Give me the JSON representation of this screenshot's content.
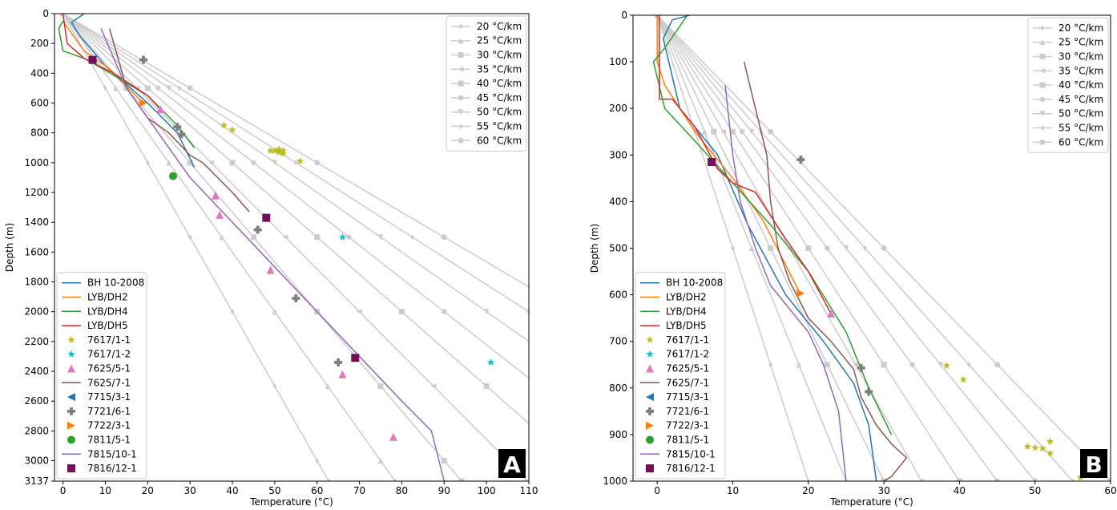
{
  "chart_data": [
    {
      "type": "line",
      "panel_label": "A",
      "xlabel": "Temperature (°C)",
      "ylabel": "Depth (m)",
      "xlim": [
        -2,
        110
      ],
      "ylim": [
        3137,
        0
      ],
      "xticks": [
        0,
        10,
        20,
        30,
        40,
        50,
        60,
        70,
        80,
        90,
        100,
        110
      ],
      "yticks": [
        0,
        200,
        400,
        600,
        800,
        1000,
        1200,
        1400,
        1600,
        1800,
        2000,
        2200,
        2400,
        2600,
        2800,
        3000,
        3137
      ],
      "legend": "lower left",
      "gradient_legend": "upper right",
      "gradient_color": "#cccccc",
      "gradients": [
        {
          "name": "20 °C/km",
          "marker": "diamond",
          "x": [
            0,
            10,
            20,
            30,
            40,
            50,
            60,
            62.74
          ],
          "y": [
            0,
            500,
            1000,
            1500,
            2000,
            2500,
            3000,
            3137
          ]
        },
        {
          "name": "25 °C/km",
          "marker": "triangle-up",
          "x": [
            0,
            12.5,
            25,
            37.5,
            50,
            62.5,
            75,
            78.425
          ],
          "y": [
            0,
            500,
            1000,
            1500,
            2000,
            2500,
            3000,
            3137
          ]
        },
        {
          "name": "30 °C/km",
          "marker": "square",
          "x": [
            0,
            15,
            30,
            45,
            60,
            75,
            90,
            94.11
          ],
          "y": [
            0,
            500,
            1000,
            1500,
            2000,
            2500,
            3000,
            3137
          ]
        },
        {
          "name": "35 °C/km",
          "marker": "triangle-left",
          "x": [
            0,
            17.5,
            35,
            52.5,
            70,
            87.5,
            105,
            109.795
          ],
          "y": [
            0,
            500,
            1000,
            1500,
            2000,
            2500,
            3000,
            3137
          ]
        },
        {
          "name": "40 °C/km",
          "marker": "square",
          "x": [
            0,
            20,
            40,
            60,
            80,
            100,
            120,
            125.48
          ],
          "y": [
            0,
            500,
            1000,
            1500,
            2000,
            2500,
            3000,
            3137
          ]
        },
        {
          "name": "45 °C/km",
          "marker": "hexagon",
          "x": [
            0,
            22.5,
            45,
            67.5,
            90,
            112.5,
            135,
            141.165
          ],
          "y": [
            0,
            500,
            1000,
            1500,
            2000,
            2500,
            3000,
            3137
          ]
        },
        {
          "name": "50 °C/km",
          "marker": "triangle-down",
          "x": [
            0,
            25,
            50,
            75,
            100,
            125,
            150,
            156.85
          ],
          "y": [
            0,
            500,
            1000,
            1500,
            2000,
            2500,
            3000,
            3137
          ]
        },
        {
          "name": "55 °C/km",
          "marker": "diamond",
          "x": [
            0,
            27.5,
            55,
            82.5,
            110,
            137.5,
            165,
            172.535
          ],
          "y": [
            0,
            500,
            1000,
            1500,
            2000,
            2500,
            3000,
            3137
          ]
        },
        {
          "name": "60 °C/km",
          "marker": "circle",
          "x": [
            0,
            30,
            60,
            90,
            120,
            150,
            180,
            188.22
          ],
          "y": [
            0,
            500,
            1000,
            1500,
            2000,
            2500,
            3000,
            3137
          ]
        }
      ],
      "series": [
        {
          "name": "BH 10-2008",
          "color": "#1f77b4",
          "x": [
            5,
            2,
            4,
            10,
            20,
            27,
            31
          ],
          "y": [
            0,
            60,
            150,
            350,
            600,
            800,
            1030
          ]
        },
        {
          "name": "LYB/DH2",
          "color": "#ff7f0e",
          "x": [
            0,
            5,
            10,
            19
          ],
          "y": [
            50,
            250,
            350,
            600
          ]
        },
        {
          "name": "LYB/DH4",
          "color": "#2ca02c",
          "x": [
            0,
            -1,
            0,
            5,
            10,
            20,
            27,
            31
          ],
          "y": [
            50,
            100,
            250,
            300,
            380,
            550,
            750,
            900
          ]
        },
        {
          "name": "LYB/DH5",
          "color": "#d62728",
          "x": [
            0,
            1,
            5,
            12,
            20,
            23
          ],
          "y": [
            0,
            200,
            300,
            400,
            550,
            640
          ]
        },
        {
          "name": "7617/1-1",
          "color": "#bcbd22",
          "marker": "star",
          "x": [
            38,
            40,
            49,
            50,
            51,
            52,
            51,
            52,
            56
          ],
          "y": [
            750,
            780,
            920,
            920,
            930,
            920,
            910,
            940,
            990
          ]
        },
        {
          "name": "7617/1-2",
          "color": "#17becf",
          "marker": "star",
          "x": [
            66,
            101
          ],
          "y": [
            1500,
            2340
          ]
        },
        {
          "name": "7625/5-1",
          "color": "#e377c2",
          "marker": "triangle-up",
          "x": [
            23,
            36,
            37,
            49,
            66,
            78
          ],
          "y": [
            640,
            1220,
            1350,
            1720,
            2420,
            2840
          ]
        },
        {
          "name": "7625/7-1",
          "color": "#8c564b",
          "x": [
            11,
            13,
            15,
            20,
            25,
            30,
            33,
            40,
            44
          ],
          "y": [
            100,
            300,
            500,
            700,
            800,
            950,
            1000,
            1200,
            1330
          ]
        },
        {
          "name": "7715/3-1",
          "color": "#1f77b4",
          "marker": "triangle-left",
          "x": [],
          "y": []
        },
        {
          "name": "7721/6-1",
          "color": "#7f7f7f",
          "marker": "plus",
          "x": [
            19,
            27,
            28,
            46,
            55,
            65
          ],
          "y": [
            310,
            760,
            810,
            1450,
            1910,
            2340
          ]
        },
        {
          "name": "7722/3-1",
          "color": "#ff7f0e",
          "marker": "triangle-right",
          "x": [
            19
          ],
          "y": [
            600
          ]
        },
        {
          "name": "7811/5-1",
          "color": "#2ca02c",
          "marker": "circle",
          "x": [
            26
          ],
          "y": [
            1090
          ]
        },
        {
          "name": "7815/10-1",
          "color": "#9467bd",
          "x": [
            9,
            12,
            15,
            20,
            25,
            30,
            40,
            50,
            60,
            70,
            80,
            87,
            90
          ],
          "y": [
            100,
            300,
            500,
            700,
            900,
            1100,
            1400,
            1700,
            2000,
            2300,
            2600,
            2800,
            3137
          ]
        },
        {
          "name": "7816/12-1",
          "color": "#720e5a",
          "marker": "square",
          "x": [
            7,
            48,
            69
          ],
          "y": [
            310,
            1370,
            2310
          ]
        }
      ]
    },
    {
      "type": "line",
      "panel_label": "B",
      "xlabel": "Temperature (°C)",
      "ylabel": "Depth (m)",
      "xlim": [
        -3.2,
        60
      ],
      "ylim": [
        1000,
        0
      ],
      "xticks": [
        0,
        10,
        20,
        30,
        40,
        50,
        60
      ],
      "yticks": [
        0,
        100,
        200,
        300,
        400,
        500,
        600,
        700,
        800,
        900,
        1000
      ],
      "legend": "lower left",
      "gradient_legend": "upper right",
      "gradient_color": "#cccccc",
      "gradients": [
        {
          "name": "20 °C/km",
          "marker": "diamond",
          "x": [
            0,
            5,
            10,
            15,
            20
          ],
          "y": [
            0,
            250,
            500,
            750,
            1000
          ]
        },
        {
          "name": "25 °C/km",
          "marker": "triangle-up",
          "x": [
            0,
            6.25,
            12.5,
            18.75,
            25
          ],
          "y": [
            0,
            250,
            500,
            750,
            1000
          ]
        },
        {
          "name": "30 °C/km",
          "marker": "square",
          "x": [
            0,
            7.5,
            15,
            22.5,
            30
          ],
          "y": [
            0,
            250,
            500,
            750,
            1000
          ]
        },
        {
          "name": "35 °C/km",
          "marker": "triangle-left",
          "x": [
            0,
            8.75,
            17.5,
            26.25,
            35
          ],
          "y": [
            0,
            250,
            500,
            750,
            1000
          ]
        },
        {
          "name": "40 °C/km",
          "marker": "square",
          "x": [
            0,
            10,
            20,
            30,
            40
          ],
          "y": [
            0,
            250,
            500,
            750,
            1000
          ]
        },
        {
          "name": "45 °C/km",
          "marker": "hexagon",
          "x": [
            0,
            11.25,
            22.5,
            33.75,
            45
          ],
          "y": [
            0,
            250,
            500,
            750,
            1000
          ]
        },
        {
          "name": "50 °C/km",
          "marker": "triangle-down",
          "x": [
            0,
            12.5,
            25,
            37.5,
            50
          ],
          "y": [
            0,
            250,
            500,
            750,
            1000
          ]
        },
        {
          "name": "55 °C/km",
          "marker": "diamond",
          "x": [
            0,
            13.75,
            27.5,
            41.25,
            55
          ],
          "y": [
            0,
            250,
            500,
            750,
            1000
          ]
        },
        {
          "name": "60 °C/km",
          "marker": "circle",
          "x": [
            0,
            15,
            30,
            45,
            60
          ],
          "y": [
            0,
            250,
            500,
            750,
            1000
          ]
        }
      ],
      "series": [
        {
          "name": "BH 10-2008",
          "color": "#1f77b4",
          "x": [
            4.3,
            2,
            0.8,
            3,
            8,
            12,
            17,
            22,
            26,
            28,
            29
          ],
          "y": [
            0,
            10,
            50,
            200,
            300,
            450,
            600,
            700,
            790,
            880,
            1000
          ]
        },
        {
          "name": "LYB/DH2",
          "color": "#ff7f0e",
          "x": [
            0,
            0,
            1,
            5,
            10,
            14,
            19
          ],
          "y": [
            0,
            100,
            150,
            250,
            350,
            440,
            600
          ]
        },
        {
          "name": "LYB/DH4",
          "color": "#2ca02c",
          "x": [
            4,
            1,
            -0.5,
            1,
            5,
            10,
            15,
            20,
            25,
            28,
            31
          ],
          "y": [
            0,
            70,
            100,
            200,
            270,
            360,
            450,
            550,
            680,
            800,
            900
          ]
        },
        {
          "name": "LYB/DH5",
          "color": "#d62728",
          "x": [
            0.3,
            0.3,
            2,
            5,
            8,
            10,
            13,
            17,
            20,
            23
          ],
          "y": [
            0,
            180,
            180,
            240,
            330,
            360,
            380,
            480,
            550,
            640
          ]
        },
        {
          "name": "7617/1-1",
          "color": "#bcbd22",
          "marker": "star",
          "x": [
            38.3,
            40.5,
            49,
            50,
            51,
            52,
            52,
            56
          ],
          "y": [
            752,
            782,
            926,
            928,
            930,
            915,
            940,
            992
          ]
        },
        {
          "name": "7617/1-2",
          "color": "#17becf",
          "marker": "star",
          "x": [],
          "y": []
        },
        {
          "name": "7625/5-1",
          "color": "#e377c2",
          "marker": "triangle-up",
          "x": [
            23
          ],
          "y": [
            640
          ]
        },
        {
          "name": "7625/7-1",
          "color": "#8c564b",
          "x": [
            11.5,
            13,
            14.5,
            15,
            16,
            17.5,
            20,
            23,
            26,
            27,
            29,
            31,
            33,
            31,
            30
          ],
          "y": [
            100,
            200,
            300,
            400,
            500,
            570,
            650,
            700,
            760,
            820,
            880,
            920,
            950,
            990,
            1000
          ]
        },
        {
          "name": "7715/3-1",
          "color": "#1f77b4",
          "marker": "triangle-left",
          "x": [],
          "y": []
        },
        {
          "name": "7721/6-1",
          "color": "#7f7f7f",
          "marker": "plus",
          "x": [
            19,
            27,
            28
          ],
          "y": [
            310,
            757,
            808
          ]
        },
        {
          "name": "7722/3-1",
          "color": "#ff7f0e",
          "marker": "triangle-right",
          "x": [
            19
          ],
          "y": [
            597
          ]
        },
        {
          "name": "7811/5-1",
          "color": "#2ca02c",
          "marker": "circle",
          "x": [],
          "y": []
        },
        {
          "name": "7815/10-1",
          "color": "#9467bd",
          "x": [
            9,
            10,
            11,
            13,
            15,
            20,
            22,
            24,
            25
          ],
          "y": [
            150,
            300,
            400,
            500,
            580,
            680,
            750,
            850,
            1000
          ]
        },
        {
          "name": "7816/12-1",
          "color": "#720e5a",
          "marker": "square",
          "x": [
            7.2
          ],
          "y": [
            315
          ]
        }
      ]
    }
  ]
}
